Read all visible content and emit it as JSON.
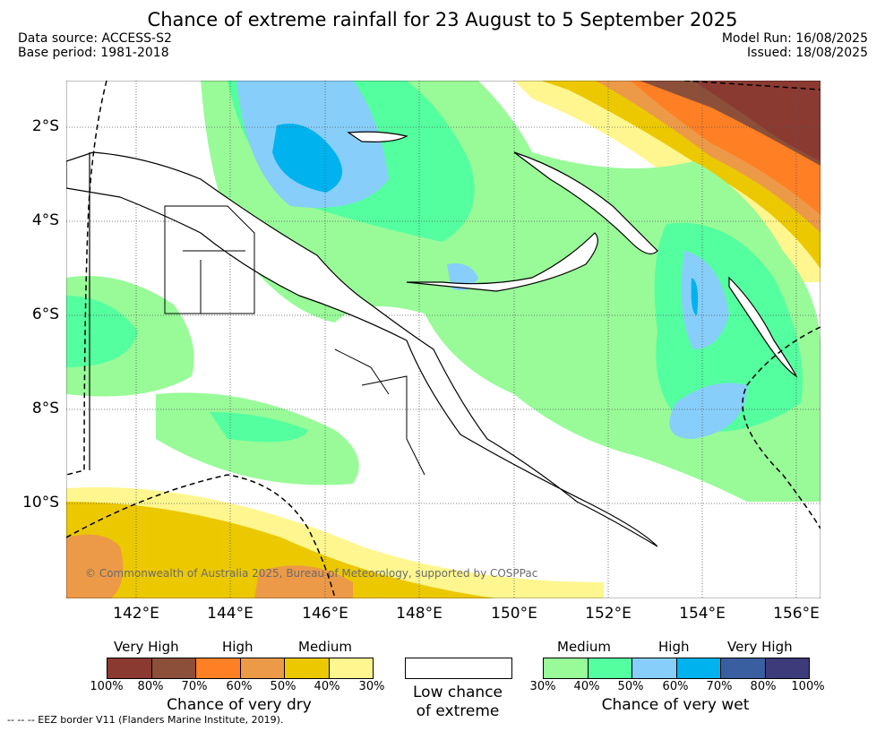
{
  "title": "Chance of extreme rainfall for 23 August to 5 September 2025",
  "meta": {
    "data_source": "Data source: ACCESS-S2",
    "base_period": "Base period: 1981-2018",
    "model_run": "Model Run: 16/08/2025",
    "issued": "Issued: 18/08/2025"
  },
  "map": {
    "lat_labels": [
      "2°S",
      "4°S",
      "6°S",
      "8°S",
      "10°S"
    ],
    "lon_labels": [
      "142°E",
      "144°E",
      "146°E",
      "148°E",
      "150°E",
      "152°E",
      "154°E",
      "156°E"
    ],
    "copyright": "© Commonwealth of Australia 2025, Bureau of Meteorology, supported by COSPPac"
  },
  "legend": {
    "dry": {
      "categories": [
        "Very High",
        "High",
        "Medium"
      ],
      "ticks": [
        "100%",
        "80%",
        "70%",
        "60%",
        "50%",
        "40%",
        "30%"
      ],
      "caption": "Chance of very dry",
      "colors": [
        "#8b3a32",
        "#8b4f3a",
        "#ff7f24",
        "#ec9a48",
        "#ecc800",
        "#fff68f"
      ]
    },
    "low": {
      "caption_line1": "Low chance",
      "caption_line2": "of extreme"
    },
    "wet": {
      "categories": [
        "Medium",
        "High",
        "Very High"
      ],
      "ticks": [
        "30%",
        "40%",
        "50%",
        "60%",
        "70%",
        "80%",
        "100%"
      ],
      "caption": "Chance of very wet",
      "colors": [
        "#98fb98",
        "#54ff9f",
        "#87cefa",
        "#00b2ee",
        "#3a5fa0",
        "#3d3b7a"
      ]
    }
  },
  "eez_note": "--  --  -- EEZ border V11 (Flanders Marine Institute, 2019)."
}
